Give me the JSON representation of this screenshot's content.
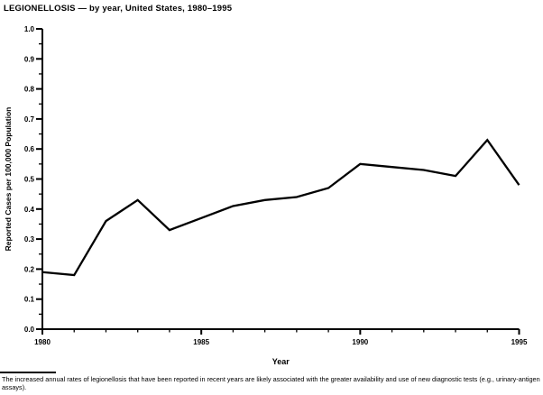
{
  "figure": {
    "title": "LEGIONELLOSIS — by year, United States, 1980–1995",
    "footnote": "The increased annual rates of legionellosis that have been reported in recent years are likely associated with the greater availability and use of new diagnostic tests (e.g., urinary-antigen assays)."
  },
  "chart_data": {
    "type": "line",
    "title": "LEGIONELLOSIS — by year, United States, 1980–1995",
    "xlabel": "Year",
    "ylabel": "Reported Cases per 100,000 Population",
    "x": [
      1980,
      1981,
      1982,
      1983,
      1984,
      1985,
      1986,
      1987,
      1988,
      1989,
      1990,
      1991,
      1992,
      1993,
      1994,
      1995
    ],
    "values": [
      0.19,
      0.18,
      0.36,
      0.43,
      0.33,
      0.37,
      0.41,
      0.43,
      0.44,
      0.47,
      0.55,
      0.54,
      0.53,
      0.51,
      0.63,
      0.48
    ],
    "xlim": [
      1980,
      1995
    ],
    "ylim": [
      0.0,
      1.0
    ],
    "y_major_tick_step": 0.1,
    "y_minor_tick_step": 0.05,
    "x_major_ticks": [
      1980,
      1985,
      1990,
      1995
    ],
    "x_minor_tick_step": 1,
    "y_tick_label_decimals": 1,
    "grid": false,
    "legend": false,
    "line_color": "#000000",
    "axis_color": "#000000",
    "background_color": "#ffffff"
  }
}
